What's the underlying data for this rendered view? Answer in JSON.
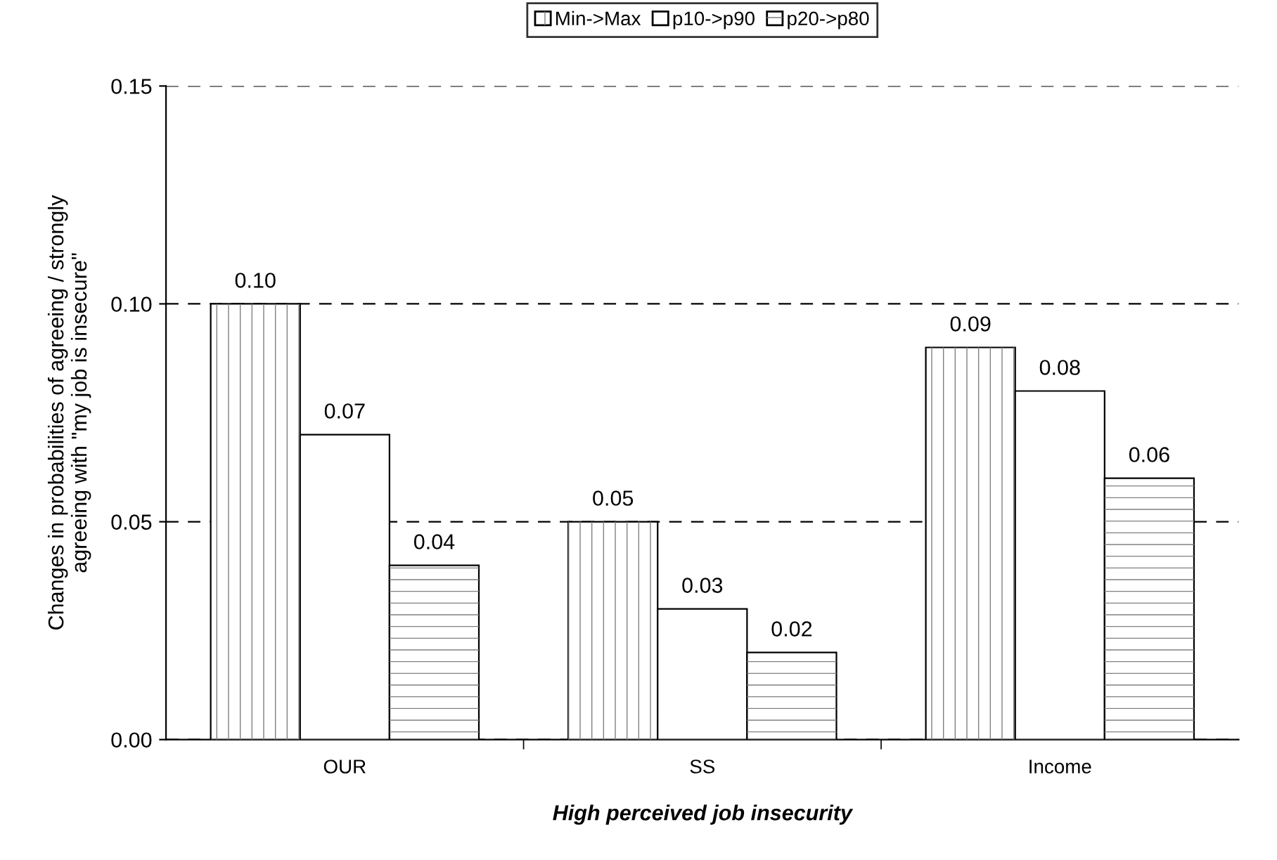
{
  "chart_data": {
    "type": "bar",
    "xlabel": "High perceived job insecurity",
    "ylabel": "Changes in probabilities of agreeing / strongly\nagreeing with \"my job is insecure\"",
    "categories": [
      "OUR",
      "SS",
      "Income"
    ],
    "series": [
      {
        "name": "Min->Max",
        "color": "#ffffff",
        "values": [
          0.1,
          0.05,
          0.09
        ],
        "value_labels": [
          "0.10",
          "0.05",
          "0.09"
        ]
      },
      {
        "name": "p10->p90",
        "color": "#ffffff",
        "values": [
          0.07,
          0.03,
          0.08
        ],
        "value_labels": [
          "0.07",
          "0.03",
          "0.08"
        ]
      },
      {
        "name": "p20->p80",
        "color": "#ffffff",
        "values": [
          0.04,
          0.02,
          0.06
        ],
        "value_labels": [
          "0.04",
          "0.02",
          "0.06"
        ]
      }
    ],
    "ylim": [
      0,
      0.15
    ],
    "yticks": [
      {
        "value": 0,
        "label": "0.00"
      },
      {
        "value": 0.05,
        "label": "0.05"
      },
      {
        "value": 0.1,
        "label": "0.10"
      },
      {
        "value": 0.15,
        "label": "0.15"
      }
    ],
    "grid": "y",
    "legend": "top"
  }
}
